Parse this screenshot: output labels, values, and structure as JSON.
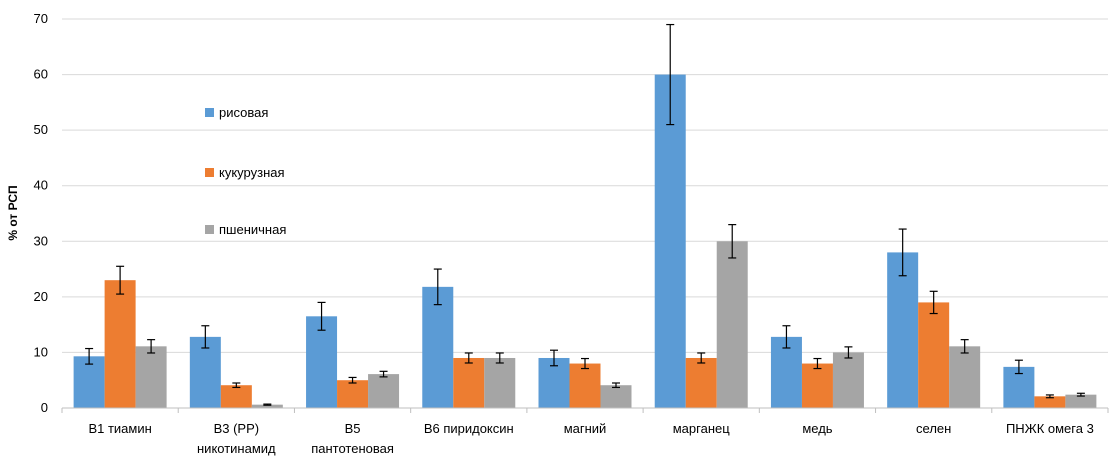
{
  "chart_data": {
    "type": "bar",
    "title": "",
    "xlabel": "",
    "ylabel": "% от РСП",
    "ylim": [
      0,
      70
    ],
    "yticks": [
      0,
      10,
      20,
      30,
      40,
      50,
      60,
      70
    ],
    "grid": true,
    "legend_position": "left-inside",
    "categories": [
      [
        "B1 тиамин"
      ],
      [
        "B3 (PP)",
        "никотинамид"
      ],
      [
        "B5",
        "пантотеновая"
      ],
      [
        "B6 пиридоксин"
      ],
      [
        "магний"
      ],
      [
        "марганец"
      ],
      [
        "медь"
      ],
      [
        "селен"
      ],
      [
        "ПНЖК омега 3"
      ]
    ],
    "series": [
      {
        "name": "рисовая",
        "color": "#5B9BD5",
        "values": [
          9.3,
          12.8,
          16.5,
          21.8,
          9.0,
          60.0,
          12.8,
          28.0,
          7.4
        ],
        "errors": [
          1.4,
          2.0,
          2.5,
          3.2,
          1.4,
          9.0,
          2.0,
          4.2,
          1.2
        ]
      },
      {
        "name": "кукурузная",
        "color": "#ED7D31",
        "values": [
          23.0,
          4.1,
          5.0,
          9.0,
          8.0,
          9.0,
          8.0,
          19.0,
          2.1
        ],
        "errors": [
          2.5,
          0.4,
          0.5,
          0.9,
          0.9,
          0.9,
          0.9,
          2.0,
          0.25
        ]
      },
      {
        "name": "пшеничная",
        "color": "#A5A5A5",
        "values": [
          11.1,
          0.6,
          6.1,
          9.0,
          4.1,
          30.0,
          10.0,
          11.1,
          2.4
        ],
        "errors": [
          1.2,
          0.1,
          0.5,
          0.9,
          0.4,
          3.0,
          1.0,
          1.2,
          0.25
        ]
      }
    ]
  }
}
